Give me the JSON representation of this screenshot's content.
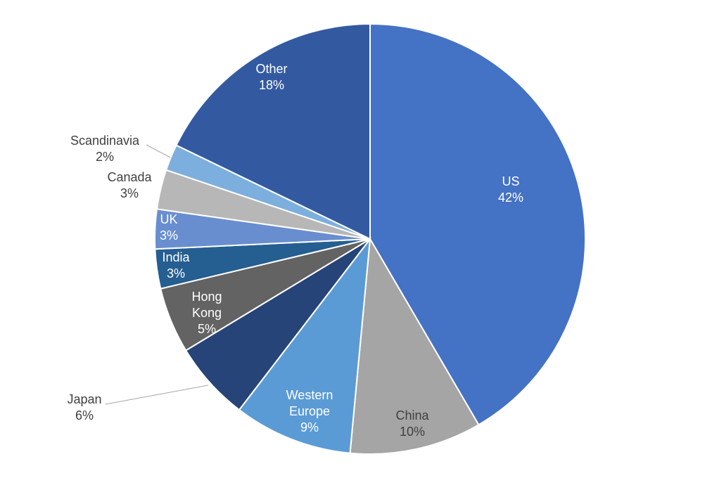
{
  "chart_data": {
    "type": "pie",
    "title": "",
    "start_angle_deg": 0,
    "direction": "clockwise",
    "slices": [
      {
        "label": "US",
        "value": 42,
        "pct_text": "42%",
        "color": "#4472C4",
        "label_color": "#ffffff"
      },
      {
        "label": "China",
        "value": 10,
        "pct_text": "10%",
        "color": "#A5A5A5",
        "label_color": "#404040"
      },
      {
        "label": "Western Europe",
        "value": 9,
        "pct_text": "9%",
        "color": "#5B9BD5",
        "label_color": "#ffffff"
      },
      {
        "label": "Japan",
        "value": 6,
        "pct_text": "6%",
        "color": "#264478",
        "label_color": "#404040"
      },
      {
        "label": "Hong Kong",
        "value": 5,
        "pct_text": "5%",
        "color": "#636363",
        "label_color": "#ffffff"
      },
      {
        "label": "India",
        "value": 3,
        "pct_text": "3%",
        "color": "#255E91",
        "label_color": "#ffffff"
      },
      {
        "label": "UK",
        "value": 3,
        "pct_text": "3%",
        "color": "#698ED0",
        "label_color": "#ffffff"
      },
      {
        "label": "Canada",
        "value": 3,
        "pct_text": "3%",
        "color": "#B7B7B7",
        "label_color": "#404040"
      },
      {
        "label": "Scandinavia",
        "value": 2,
        "pct_text": "2%",
        "color": "#7CAFDD",
        "label_color": "#404040"
      },
      {
        "label": "Other",
        "value": 18,
        "pct_text": "18%",
        "color": "#335AA1",
        "label_color": "#ffffff"
      }
    ]
  }
}
